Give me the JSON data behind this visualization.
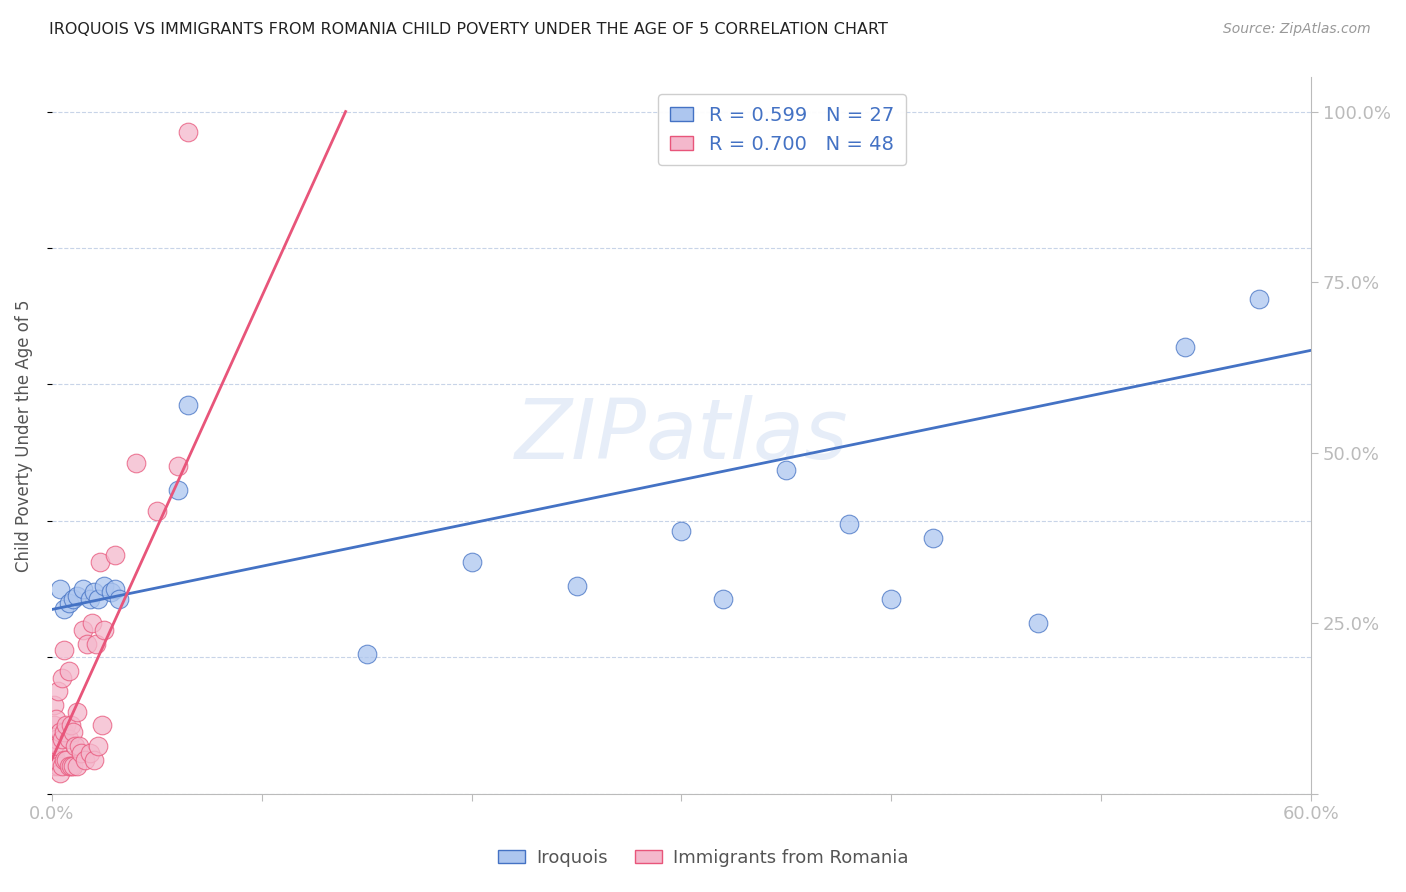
{
  "title": "IROQUOIS VS IMMIGRANTS FROM ROMANIA CHILD POVERTY UNDER THE AGE OF 5 CORRELATION CHART",
  "source": "Source: ZipAtlas.com",
  "ylabel": "Child Poverty Under the Age of 5",
  "xlim": [
    0.0,
    0.6
  ],
  "ylim": [
    0.0,
    1.05
  ],
  "xticks": [
    0.0,
    0.1,
    0.2,
    0.3,
    0.4,
    0.5,
    0.6
  ],
  "xticklabels": [
    "0.0%",
    "",
    "",
    "",
    "",
    "",
    "60.0%"
  ],
  "yticks_right": [
    0.0,
    0.25,
    0.5,
    0.75,
    1.0
  ],
  "yticklabels_right": [
    "",
    "25.0%",
    "50.0%",
    "75.0%",
    "100.0%"
  ],
  "legend1_r": "0.599",
  "legend1_n": "27",
  "legend2_r": "0.700",
  "legend2_n": "48",
  "iroquois_color": "#adc6ef",
  "romania_color": "#f4b8cc",
  "iroquois_line_color": "#4472c4",
  "romania_line_color": "#e8557a",
  "watermark": "ZIPatlas",
  "background_color": "#ffffff",
  "grid_color": "#c8d4e8",
  "iroquois_x": [
    0.004,
    0.006,
    0.008,
    0.01,
    0.012,
    0.015,
    0.018,
    0.02,
    0.022,
    0.025,
    0.028,
    0.03,
    0.032,
    0.06,
    0.065,
    0.15,
    0.2,
    0.25,
    0.3,
    0.32,
    0.35,
    0.38,
    0.4,
    0.42,
    0.47,
    0.54,
    0.575
  ],
  "iroquois_y": [
    0.3,
    0.27,
    0.28,
    0.285,
    0.29,
    0.3,
    0.285,
    0.295,
    0.285,
    0.305,
    0.295,
    0.3,
    0.285,
    0.445,
    0.57,
    0.205,
    0.34,
    0.305,
    0.385,
    0.285,
    0.475,
    0.395,
    0.285,
    0.375,
    0.25,
    0.655,
    0.725
  ],
  "romania_x": [
    0.001,
    0.001,
    0.001,
    0.001,
    0.002,
    0.002,
    0.002,
    0.003,
    0.003,
    0.003,
    0.004,
    0.004,
    0.005,
    0.005,
    0.005,
    0.006,
    0.006,
    0.006,
    0.007,
    0.007,
    0.008,
    0.008,
    0.008,
    0.009,
    0.009,
    0.01,
    0.01,
    0.011,
    0.012,
    0.012,
    0.013,
    0.014,
    0.015,
    0.016,
    0.017,
    0.018,
    0.019,
    0.02,
    0.021,
    0.022,
    0.023,
    0.024,
    0.025,
    0.03,
    0.04,
    0.05,
    0.06,
    0.065
  ],
  "romania_y": [
    0.04,
    0.07,
    0.1,
    0.13,
    0.05,
    0.08,
    0.11,
    0.04,
    0.07,
    0.15,
    0.03,
    0.09,
    0.04,
    0.08,
    0.17,
    0.05,
    0.09,
    0.21,
    0.05,
    0.1,
    0.04,
    0.08,
    0.18,
    0.04,
    0.1,
    0.04,
    0.09,
    0.07,
    0.04,
    0.12,
    0.07,
    0.06,
    0.24,
    0.05,
    0.22,
    0.06,
    0.25,
    0.05,
    0.22,
    0.07,
    0.34,
    0.1,
    0.24,
    0.35,
    0.485,
    0.415,
    0.48,
    0.97
  ],
  "romania_line_x0": 0.0,
  "romania_line_y0": 0.05,
  "romania_line_x1": 0.14,
  "romania_line_y1": 1.0,
  "iroquois_line_x0": 0.0,
  "iroquois_line_y0": 0.27,
  "iroquois_line_x1": 0.6,
  "iroquois_line_y1": 0.65
}
